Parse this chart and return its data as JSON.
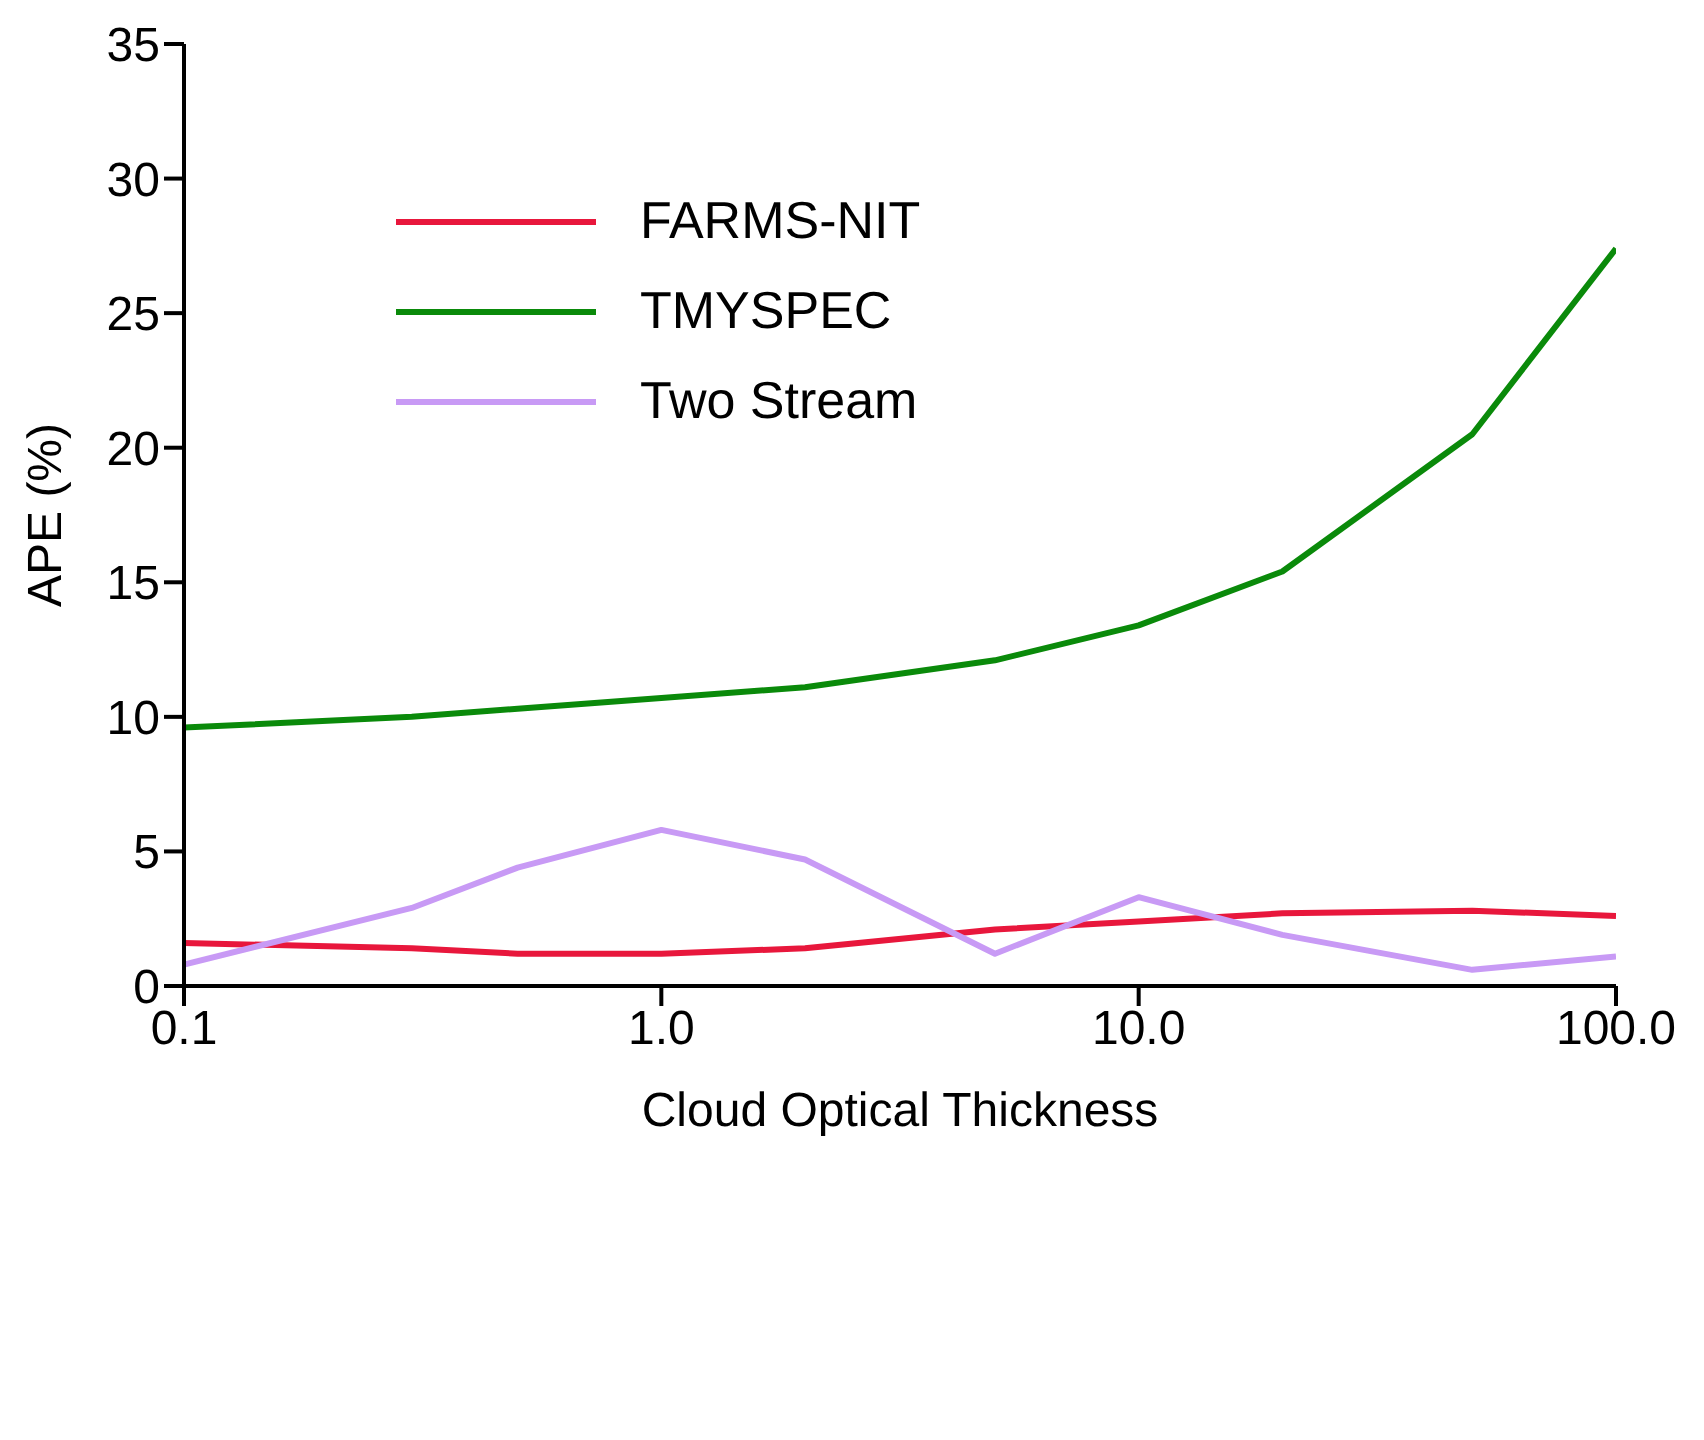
{
  "chart_data": {
    "type": "line",
    "xlabel": "Cloud Optical Thickness",
    "ylabel": "APE (%)",
    "log": "x",
    "x": [
      0.1,
      0.3,
      0.5,
      1,
      2,
      5,
      10,
      20,
      50,
      100
    ],
    "series": [
      {
        "name": "FARMS-NIT",
        "color": "#e8173c",
        "values": [
          1.6,
          1.4,
          1.2,
          1.2,
          1.4,
          2.1,
          2.4,
          2.7,
          2.8,
          2.6
        ]
      },
      {
        "name": "TMYSPEC",
        "color": "#0a8a0a",
        "values": [
          9.6,
          10.0,
          10.3,
          10.7,
          11.1,
          12.1,
          13.4,
          15.4,
          20.5,
          27.4
        ]
      },
      {
        "name": "Two Stream",
        "color": "#c89af5",
        "values": [
          0.8,
          2.9,
          4.4,
          5.8,
          4.7,
          1.2,
          3.3,
          1.9,
          0.6,
          1.1
        ]
      }
    ],
    "xlim": [
      0.1,
      100
    ],
    "xticks": [
      {
        "value": 0.1,
        "label": "0.1"
      },
      {
        "value": 1,
        "label": "1.0"
      },
      {
        "value": 10,
        "label": "10.0"
      },
      {
        "value": 100,
        "label": "100.0"
      }
    ],
    "ylim": [
      0,
      35
    ],
    "yticks": [
      0,
      5,
      10,
      15,
      20,
      25,
      30,
      35
    ],
    "grid": false,
    "legend": "top left",
    "marker": "none",
    "line_style": "solid"
  }
}
